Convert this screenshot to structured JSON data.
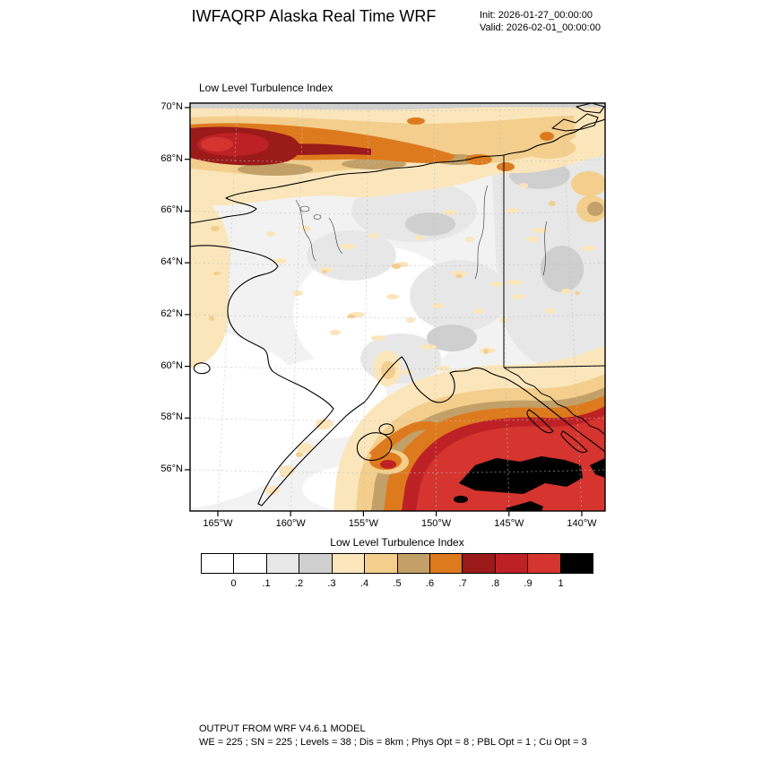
{
  "header": {
    "title": "IWFAQRP Alaska Real Time WRF",
    "init": "Init: 2026-01-27_00:00:00",
    "valid": "Valid: 2026-02-01_00:00:00"
  },
  "map": {
    "panel_title": "Low Level Turbulence Index",
    "lat_ticks": [
      "70°N",
      "68°N",
      "66°N",
      "64°N",
      "62°N",
      "60°N",
      "58°N",
      "56°N"
    ],
    "lon_ticks": [
      "165°W",
      "160°W",
      "155°W",
      "150°W",
      "145°W",
      "140°W"
    ]
  },
  "colorbar": {
    "title": "Low Level Turbulence Index",
    "labels": [
      "0",
      ".1",
      ".2",
      ".3",
      ".4",
      ".5",
      ".6",
      ".7",
      ".8",
      ".9",
      "1"
    ],
    "colors": [
      "#FFFFFF",
      "#FFFFFF",
      "#E7E7E7",
      "#CFCFCF",
      "#FBE6BB",
      "#F3CE8D",
      "#C2A068",
      "#DE7A1E",
      "#9B1A1A",
      "#BE2125",
      "#D5342F",
      "#000000"
    ]
  },
  "footer": {
    "line1": "OUTPUT FROM WRF V4.6.1 MODEL",
    "line2": "WE = 225 ; SN = 225 ; Levels = 38 ; Dis = 8km ; Phys Opt = 8 ; PBL Opt = 1 ; Cu Opt = 3"
  },
  "chart_data": {
    "type": "heatmap",
    "title": "Low Level Turbulence Index",
    "x_ticks": [
      "165°W",
      "160°W",
      "155°W",
      "150°W",
      "145°W",
      "140°W"
    ],
    "y_ticks": [
      "70°N",
      "68°N",
      "66°N",
      "64°N",
      "62°N",
      "60°N",
      "58°N",
      "56°N"
    ],
    "levels": [
      0,
      0.1,
      0.2,
      0.3,
      0.4,
      0.5,
      0.6,
      0.7,
      0.8,
      0.9,
      1
    ],
    "palette": [
      "#FFFFFF",
      "#FFFFFF",
      "#E7E7E7",
      "#CFCFCF",
      "#FBE6BB",
      "#F3CE8D",
      "#C2A068",
      "#DE7A1E",
      "#9B1A1A",
      "#BE2125",
      "#D5342F",
      "#000000"
    ],
    "legend_position": "bottom",
    "regions": [
      {
        "area": "Arctic / Brooks Range band near 68-69N across 165-150W",
        "index": "0.6 to 1.0, dark-red and red core in the northwest"
      },
      {
        "area": "Band continues east as orange/tan fringe toward 150W",
        "index": "0.4 to 0.7"
      },
      {
        "area": "Gulf of Alaska southeast of Kodiak and Kenai",
        "index": "0.9 to above 1, black cells (>1) near 57N 146W"
      },
      {
        "area": "South coast fringe (Kodiak, Kenai, Prince William Sound, panhandle)",
        "index": "0.4 to 0.8"
      },
      {
        "area": "Interior and western Alaska",
        "index": "0 to 0.3 with scattered 0.3-0.5 patches"
      },
      {
        "area": "Yukon / northeast sector right of border line",
        "index": "0.1 to 0.3 with tan 0.3-0.5 patches"
      }
    ]
  }
}
